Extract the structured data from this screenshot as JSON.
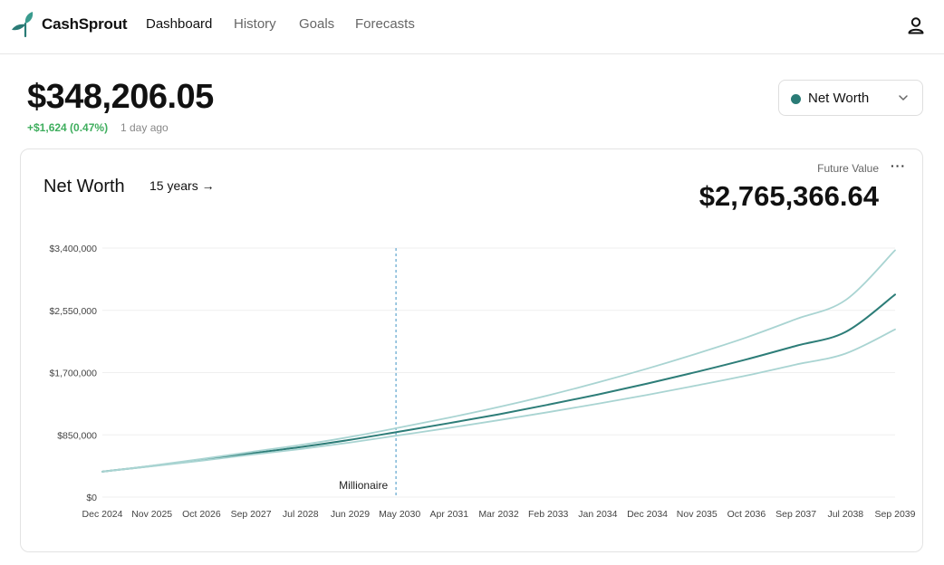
{
  "nav": {
    "brand": "CashSprout",
    "links": [
      {
        "label": "Dashboard",
        "active": true
      },
      {
        "label": "History",
        "active": false
      },
      {
        "label": "Goals",
        "active": false
      },
      {
        "label": "Forecasts",
        "active": false
      }
    ],
    "user_icon": "user-icon"
  },
  "header": {
    "balance": "$348,206.05",
    "change": "+$1,624 (0.47%)",
    "updated": "1 day ago"
  },
  "selector": {
    "label": "Net Worth",
    "dot_color": "#2a7b76"
  },
  "card": {
    "title": "Net Worth",
    "range_label": "15 years →",
    "future_label": "Future Value",
    "future_value": "$2,765,366.64",
    "more_label": "···"
  },
  "colors": {
    "main_line": "#2d7d78",
    "band_line": "#a9d4d2",
    "marker_line": "#7fb7d8",
    "gain": "#3fae5e"
  },
  "chart_data": {
    "type": "line",
    "x": [
      "Dec 2024",
      "Nov 2025",
      "Oct 2026",
      "Sep 2027",
      "Jul 2028",
      "Jun 2029",
      "May 2030",
      "Apr 2031",
      "Mar 2032",
      "Feb 2033",
      "Jan 2034",
      "Dec 2034",
      "Nov 2035",
      "Oct 2036",
      "Sep 2037",
      "Jul 2038",
      "Sep 2039"
    ],
    "ylim": [
      0,
      3400000
    ],
    "yticks": [
      {
        "value": 0,
        "label": "$0"
      },
      {
        "value": 850000,
        "label": "$850,000"
      },
      {
        "value": 1700000,
        "label": "$1,700,000"
      },
      {
        "value": 2550000,
        "label": "$2,550,000"
      },
      {
        "value": 3400000,
        "label": "$3,400,000"
      }
    ],
    "series": [
      {
        "role": "main",
        "values": [
          348206,
          425000,
          508000,
          597000,
          683000,
          782000,
          895000,
          1010000,
          1130000,
          1262000,
          1400000,
          1550000,
          1710000,
          1880000,
          2065000,
          2255000,
          2765367
        ]
      },
      {
        "role": "upper",
        "values": [
          348206,
          430000,
          520000,
          617000,
          712000,
          822000,
          950000,
          1085000,
          1230000,
          1390000,
          1565000,
          1755000,
          1960000,
          2180000,
          2430000,
          2690000,
          3370000
        ]
      },
      {
        "role": "lower",
        "values": [
          348206,
          420000,
          497000,
          578000,
          656000,
          745000,
          845000,
          945000,
          1050000,
          1160000,
          1275000,
          1395000,
          1525000,
          1660000,
          1810000,
          1960000,
          2290000
        ]
      }
    ],
    "annotation": {
      "x": "May 2030",
      "label": "Millionaire"
    },
    "grid": true
  }
}
